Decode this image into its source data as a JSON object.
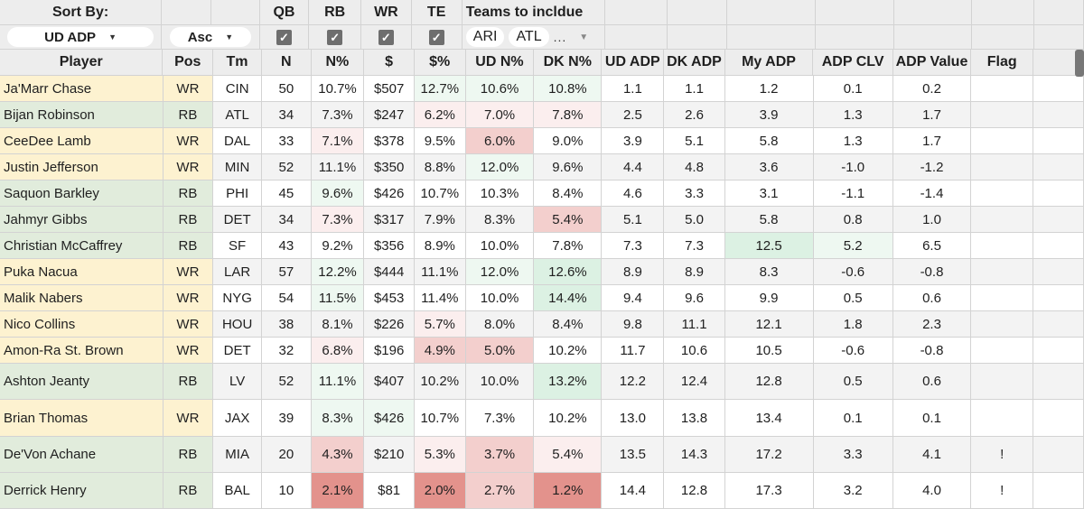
{
  "controls": {
    "sort_by_label": "Sort By:",
    "sort_field": "UD ADP",
    "sort_order": "Asc",
    "qb_label": "QB",
    "rb_label": "RB",
    "wr_label": "WR",
    "te_label": "TE",
    "teams_label": "Teams to incldue",
    "team_chips": [
      "ARI",
      "ATL"
    ],
    "teams_more": "..."
  },
  "columns": [
    "Player",
    "Pos",
    "Tm",
    "N",
    "N%",
    "$",
    "$%",
    "UD N%",
    "DK N%",
    "UD ADP",
    "DK ADP",
    "My ADP",
    "ADP CLV",
    "ADP Value",
    "Flag"
  ],
  "colors": {
    "wr_row": "#fdf2d0",
    "rb_row": "#e1ecdc",
    "header_bg": "#ededed",
    "green_light": "#eef8f1",
    "green_mid": "#dcf1e3",
    "red_light": "#fbeeee",
    "red_mid": "#f3cfcd",
    "red_dark": "#e3928c"
  },
  "rows": [
    {
      "player": "Ja'Marr Chase",
      "pos": "WR",
      "tm": "CIN",
      "n": "50",
      "np": "10.7%",
      "d": "$507",
      "dp": "12.7%",
      "udn": "10.6%",
      "dkn": "10.8%",
      "uda": "1.1",
      "dka": "1.1",
      "mya": "1.2",
      "clv": "0.1",
      "val": "0.2",
      "flag": ""
    },
    {
      "player": "Bijan Robinson",
      "pos": "RB",
      "tm": "ATL",
      "n": "34",
      "np": "7.3%",
      "d": "$247",
      "dp": "6.2%",
      "udn": "7.0%",
      "dkn": "7.8%",
      "uda": "2.5",
      "dka": "2.6",
      "mya": "3.9",
      "clv": "1.3",
      "val": "1.7",
      "flag": ""
    },
    {
      "player": "CeeDee Lamb",
      "pos": "WR",
      "tm": "DAL",
      "n": "33",
      "np": "7.1%",
      "d": "$378",
      "dp": "9.5%",
      "udn": "6.0%",
      "dkn": "9.0%",
      "uda": "3.9",
      "dka": "5.1",
      "mya": "5.8",
      "clv": "1.3",
      "val": "1.7",
      "flag": ""
    },
    {
      "player": "Justin Jefferson",
      "pos": "WR",
      "tm": "MIN",
      "n": "52",
      "np": "11.1%",
      "d": "$350",
      "dp": "8.8%",
      "udn": "12.0%",
      "dkn": "9.6%",
      "uda": "4.4",
      "dka": "4.8",
      "mya": "3.6",
      "clv": "-1.0",
      "val": "-1.2",
      "flag": ""
    },
    {
      "player": "Saquon Barkley",
      "pos": "RB",
      "tm": "PHI",
      "n": "45",
      "np": "9.6%",
      "d": "$426",
      "dp": "10.7%",
      "udn": "10.3%",
      "dkn": "8.4%",
      "uda": "4.6",
      "dka": "3.3",
      "mya": "3.1",
      "clv": "-1.1",
      "val": "-1.4",
      "flag": ""
    },
    {
      "player": "Jahmyr Gibbs",
      "pos": "RB",
      "tm": "DET",
      "n": "34",
      "np": "7.3%",
      "d": "$317",
      "dp": "7.9%",
      "udn": "8.3%",
      "dkn": "5.4%",
      "uda": "5.1",
      "dka": "5.0",
      "mya": "5.8",
      "clv": "0.8",
      "val": "1.0",
      "flag": ""
    },
    {
      "player": "Christian McCaffrey",
      "pos": "RB",
      "tm": "SF",
      "n": "43",
      "np": "9.2%",
      "d": "$356",
      "dp": "8.9%",
      "udn": "10.0%",
      "dkn": "7.8%",
      "uda": "7.3",
      "dka": "7.3",
      "mya": "12.5",
      "clv": "5.2",
      "val": "6.5",
      "flag": ""
    },
    {
      "player": "Puka Nacua",
      "pos": "WR",
      "tm": "LAR",
      "n": "57",
      "np": "12.2%",
      "d": "$444",
      "dp": "11.1%",
      "udn": "12.0%",
      "dkn": "12.6%",
      "uda": "8.9",
      "dka": "8.9",
      "mya": "8.3",
      "clv": "-0.6",
      "val": "-0.8",
      "flag": ""
    },
    {
      "player": "Malik Nabers",
      "pos": "WR",
      "tm": "NYG",
      "n": "54",
      "np": "11.5%",
      "d": "$453",
      "dp": "11.4%",
      "udn": "10.0%",
      "dkn": "14.4%",
      "uda": "9.4",
      "dka": "9.6",
      "mya": "9.9",
      "clv": "0.5",
      "val": "0.6",
      "flag": ""
    },
    {
      "player": "Nico Collins",
      "pos": "WR",
      "tm": "HOU",
      "n": "38",
      "np": "8.1%",
      "d": "$226",
      "dp": "5.7%",
      "udn": "8.0%",
      "dkn": "8.4%",
      "uda": "9.8",
      "dka": "11.1",
      "mya": "12.1",
      "clv": "1.8",
      "val": "2.3",
      "flag": ""
    },
    {
      "player": "Amon-Ra St. Brown",
      "pos": "WR",
      "tm": "DET",
      "n": "32",
      "np": "6.8%",
      "d": "$196",
      "dp": "4.9%",
      "udn": "5.0%",
      "dkn": "10.2%",
      "uda": "11.7",
      "dka": "10.6",
      "mya": "10.5",
      "clv": "-0.6",
      "val": "-0.8",
      "flag": ""
    },
    {
      "player": "Ashton Jeanty",
      "pos": "RB",
      "tm": "LV",
      "n": "52",
      "np": "11.1%",
      "d": "$407",
      "dp": "10.2%",
      "udn": "10.0%",
      "dkn": "13.2%",
      "uda": "12.2",
      "dka": "12.4",
      "mya": "12.8",
      "clv": "0.5",
      "val": "0.6",
      "flag": ""
    },
    {
      "player": "Brian Thomas",
      "pos": "WR",
      "tm": "JAX",
      "n": "39",
      "np": "8.3%",
      "d": "$426",
      "dp": "10.7%",
      "udn": "7.3%",
      "dkn": "10.2%",
      "uda": "13.0",
      "dka": "13.8",
      "mya": "13.4",
      "clv": "0.1",
      "val": "0.1",
      "flag": ""
    },
    {
      "player": "De'Von Achane",
      "pos": "RB",
      "tm": "MIA",
      "n": "20",
      "np": "4.3%",
      "d": "$210",
      "dp": "5.3%",
      "udn": "3.7%",
      "dkn": "5.4%",
      "uda": "13.5",
      "dka": "14.3",
      "mya": "17.2",
      "clv": "3.3",
      "val": "4.1",
      "flag": "!"
    },
    {
      "player": "Derrick Henry",
      "pos": "RB",
      "tm": "BAL",
      "n": "10",
      "np": "2.1%",
      "d": "$81",
      "dp": "2.0%",
      "udn": "2.7%",
      "dkn": "1.2%",
      "uda": "14.4",
      "dka": "12.8",
      "mya": "17.3",
      "clv": "3.2",
      "val": "4.0",
      "flag": "!"
    }
  ]
}
